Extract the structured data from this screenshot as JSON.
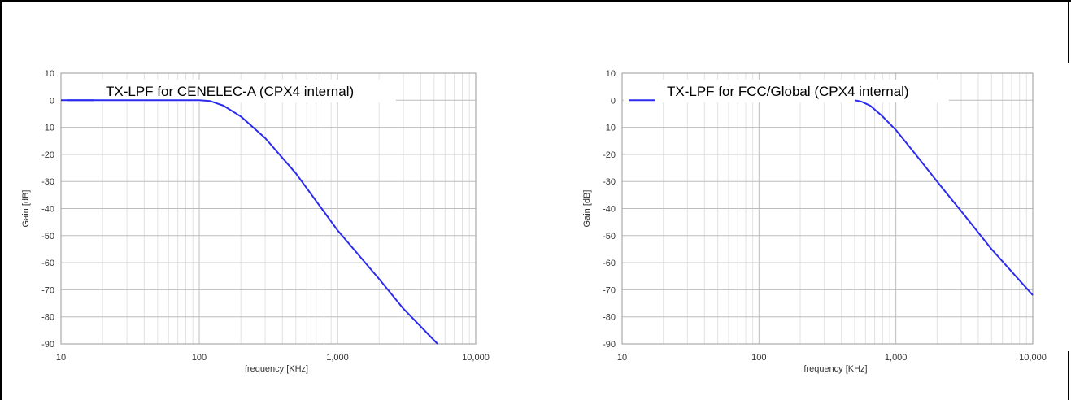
{
  "chart_data": [
    {
      "type": "line",
      "title": "",
      "xlabel": "frequency [KHz]",
      "ylabel": "Gain [dB]",
      "x_scale": "log",
      "xlim": [
        10,
        10000
      ],
      "ylim": [
        -90,
        10
      ],
      "x_ticks": [
        10,
        100,
        1000,
        10000
      ],
      "x_tick_labels": [
        "10",
        "100",
        "1,000",
        "10,000"
      ],
      "y_ticks": [
        10,
        0,
        -10,
        -20,
        -30,
        -40,
        -50,
        -60,
        -70,
        -80,
        -90
      ],
      "y_tick_labels": [
        "10",
        "0",
        "-10",
        "-20",
        "-30",
        "-40",
        "-50",
        "-60",
        "-70",
        "-80",
        "-90"
      ],
      "grid": true,
      "legend_position": "top-left",
      "series": [
        {
          "name": "TX-LPF for CENELEC-A (CPX4 internal)",
          "color": "#2b2bf0",
          "x": [
            10,
            100,
            120,
            150,
            200,
            300,
            500,
            1000,
            2000,
            3000,
            5300
          ],
          "y": [
            0,
            0,
            -0.3,
            -2,
            -6,
            -14,
            -27,
            -48,
            -66,
            -77,
            -90
          ]
        }
      ]
    },
    {
      "type": "line",
      "title": "",
      "xlabel": "frequency [KHz]",
      "ylabel": "Gain [dB]",
      "x_scale": "log",
      "xlim": [
        10,
        10000
      ],
      "ylim": [
        -90,
        10
      ],
      "x_ticks": [
        10,
        100,
        1000,
        10000
      ],
      "x_tick_labels": [
        "10",
        "100",
        "1,000",
        "10,000"
      ],
      "y_ticks": [
        10,
        0,
        -10,
        -20,
        -30,
        -40,
        -50,
        -60,
        -70,
        -80,
        -90
      ],
      "y_tick_labels": [
        "10",
        "0",
        "-10",
        "-20",
        "-30",
        "-40",
        "-50",
        "-60",
        "-70",
        "-80",
        "-90"
      ],
      "grid": true,
      "legend_position": "top-left",
      "series": [
        {
          "name": "TX-LPF for FCC/Global (CPX4 internal)",
          "color": "#2b2bf0",
          "x": [
            500,
            560,
            650,
            800,
            1000,
            1500,
            2000,
            3000,
            5000,
            10000
          ],
          "y": [
            0,
            -0.5,
            -2,
            -6,
            -11,
            -22,
            -30,
            -41,
            -55,
            -72
          ]
        }
      ]
    }
  ]
}
